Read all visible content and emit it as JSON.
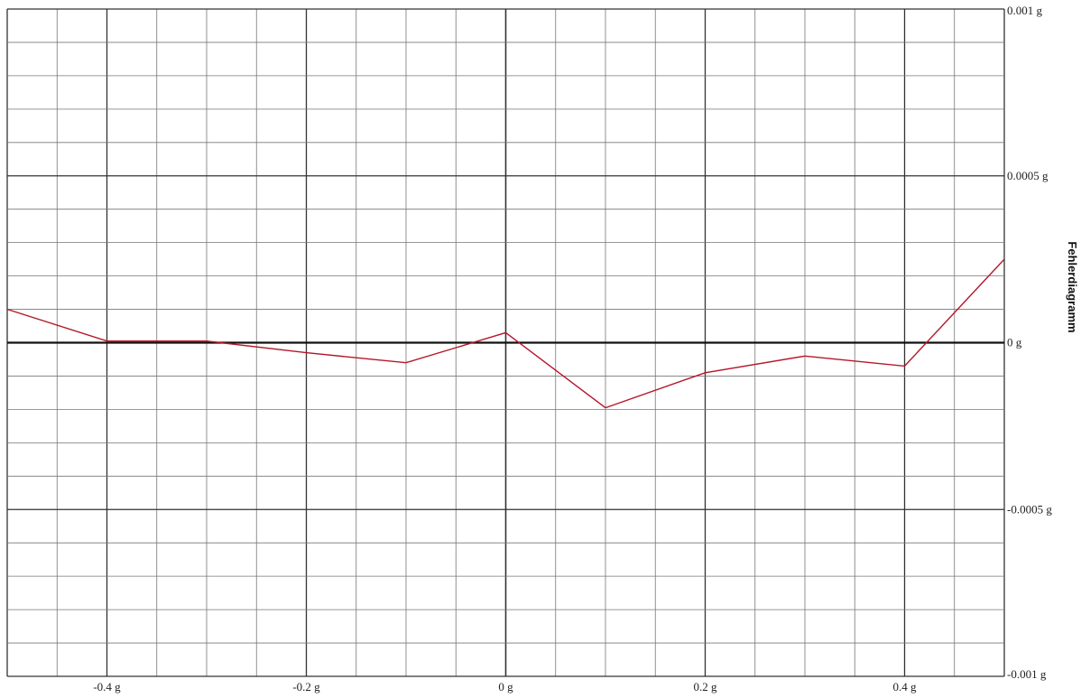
{
  "chart_data": {
    "type": "line",
    "title": "",
    "side_title": "Fehlerdiagramm",
    "xlim": [
      -0.5,
      0.5
    ],
    "ylim": [
      -0.001,
      0.001
    ],
    "x_ticks": [
      {
        "value": -0.4,
        "label": "-0.4 g"
      },
      {
        "value": -0.2,
        "label": "-0.2 g"
      },
      {
        "value": 0.0,
        "label": "0 g"
      },
      {
        "value": 0.2,
        "label": "0.2 g"
      },
      {
        "value": 0.4,
        "label": "0.4 g"
      }
    ],
    "y_ticks": [
      {
        "value": 0.001,
        "label": "0.001 g"
      },
      {
        "value": 0.0005,
        "label": "0.0005 g"
      },
      {
        "value": 0.0,
        "label": "0 g"
      },
      {
        "value": -0.0005,
        "label": "-0.0005 g"
      },
      {
        "value": -0.001,
        "label": "-0.001 g"
      }
    ],
    "grid": true,
    "x_minor_step": 0.05,
    "y_minor_step": 0.0001,
    "series": [
      {
        "color": "#b5162a",
        "x": [
          -0.5,
          -0.4,
          -0.3,
          -0.2,
          -0.1,
          0.0,
          0.1,
          0.2,
          0.3,
          0.4,
          0.5
        ],
        "y": [
          0.0001,
          5e-06,
          5e-06,
          -3e-05,
          -6e-05,
          3e-05,
          -0.000195,
          -9e-05,
          -4e-05,
          -7e-05,
          0.00025
        ]
      }
    ]
  }
}
